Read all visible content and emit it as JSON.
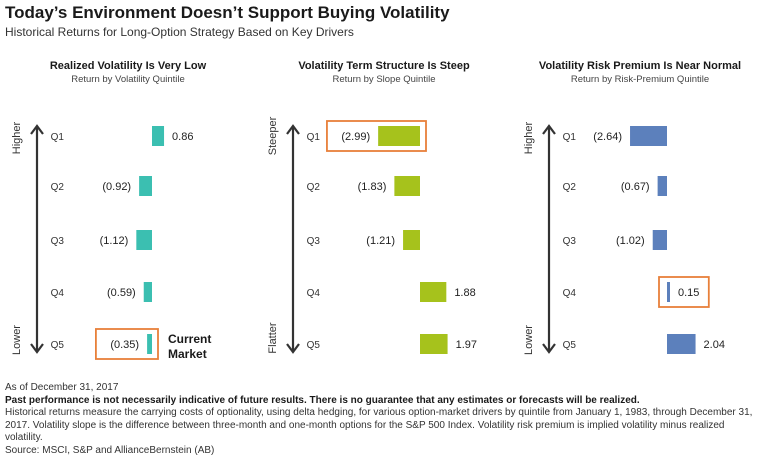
{
  "header": {
    "title": "Today’s Environment Doesn’t Support Buying Volatility",
    "subtitle": "Historical Returns for Long-Option Strategy Based on Key Drivers"
  },
  "chart_data": [
    {
      "type": "bar",
      "orientation": "horizontal",
      "title": "Realized Volatility Is Very Low",
      "subtitle": "Return by Volatility Quintile",
      "categories": [
        "Q1",
        "Q2",
        "Q3",
        "Q4",
        "Q5"
      ],
      "values": [
        0.86,
        -0.92,
        -1.12,
        -0.59,
        -0.35
      ],
      "labels": [
        "0.86",
        "(0.92)",
        "(1.12)",
        "(0.59)",
        "(0.35)"
      ],
      "axis_top_label": "Higher",
      "axis_bottom_label": "Lower",
      "highlight_index": 4,
      "annotation": [
        "Current",
        "Market"
      ],
      "color": "#3bbfb1",
      "highlight_color": "#e8803a"
    },
    {
      "type": "bar",
      "orientation": "horizontal",
      "title": "Volatility Term Structure Is Steep",
      "subtitle": "Return by Slope Quintile",
      "categories": [
        "Q1",
        "Q2",
        "Q3",
        "Q4",
        "Q5"
      ],
      "values": [
        -2.99,
        -1.83,
        -1.21,
        1.88,
        1.97
      ],
      "labels": [
        "(2.99)",
        "(1.83)",
        "(1.21)",
        "1.88",
        "1.97"
      ],
      "axis_top_label": "Steeper",
      "axis_bottom_label": "Flatter",
      "highlight_index": 0,
      "color": "#a6c21c",
      "highlight_color": "#e8803a"
    },
    {
      "type": "bar",
      "orientation": "horizontal",
      "title": "Volatility Risk Premium Is Near Normal",
      "subtitle": "Return by Risk-Premium Quintile",
      "categories": [
        "Q1",
        "Q2",
        "Q3",
        "Q4",
        "Q5"
      ],
      "values": [
        -2.64,
        -0.67,
        -1.02,
        0.15,
        2.04
      ],
      "labels": [
        "(2.64)",
        "(0.67)",
        "(1.02)",
        "0.15",
        "2.04"
      ],
      "axis_top_label": "Higher",
      "axis_bottom_label": "Lower",
      "highlight_index": 3,
      "color": "#5c80bc",
      "highlight_color": "#e8803a"
    }
  ],
  "footer": {
    "as_of": "As of December 31, 2017",
    "disclaimer": "Past performance is not necessarily indicative of future results. There is no guarantee that any estimates or forecasts will be realized.",
    "note": "Historical returns measure the carrying costs of optionality, using delta hedging, for various option-market drivers by quintile from January 1, 1983, through December 31, 2017. Volatility slope is the difference between three-month and one-month options for the S&P 500 Index. Volatility risk premium is implied volatility minus realized volatility.",
    "source": "Source: MSCI, S&P and AllianceBernstein (AB)"
  }
}
